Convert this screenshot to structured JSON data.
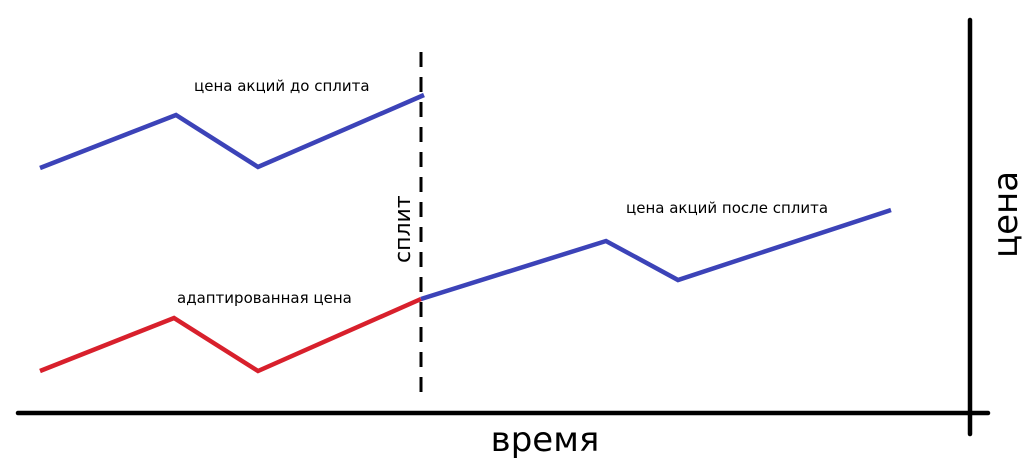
{
  "diagram": {
    "labels": {
      "before_split": "цена акций до сплита",
      "after_split": "цена акций после сплита",
      "adjusted": "адаптированная цена",
      "split": "сплит",
      "x_axis": "время",
      "y_axis": "цена"
    },
    "colors": {
      "before_split_line": "#3c43b8",
      "after_split_line": "#3c43b8",
      "adjusted_line": "#d8202c",
      "split_marker": "#000000",
      "axes": "#000000"
    },
    "lines": {
      "before_split": "blue zigzag rising to the split",
      "adjusted": "red zigzag, same shape as the pre-split line, ending at the post-split start",
      "after_split": "blue zigzag continuing upward after the split"
    }
  }
}
